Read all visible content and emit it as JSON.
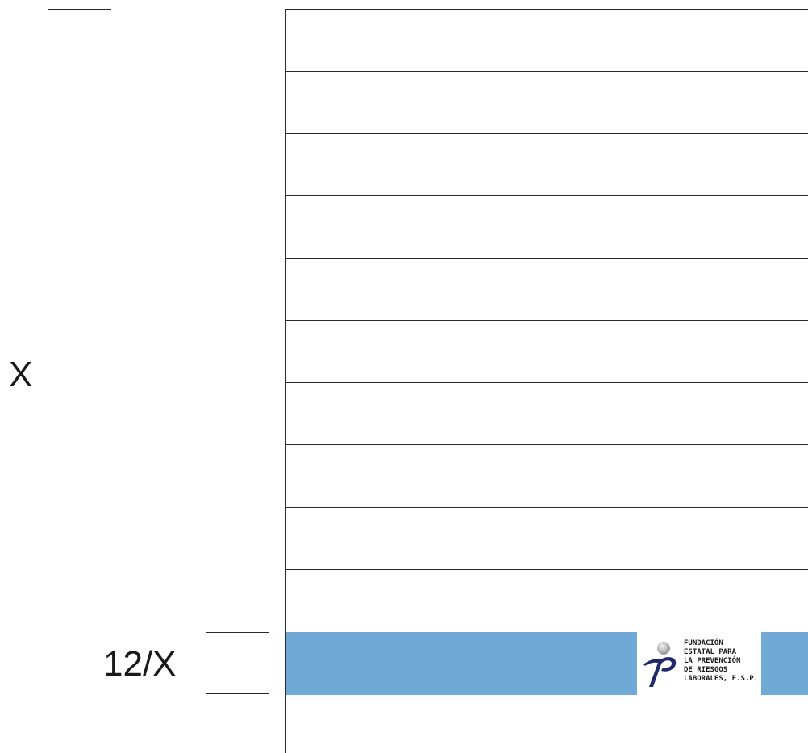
{
  "form": {
    "side_label": "X",
    "score_label": "12/X",
    "rows": 10
  },
  "logo": {
    "lines": [
      "FUNDACIÓN",
      "ESTATAL PARA",
      "LA PREVENCIÓN",
      "DE RIESGOS",
      "LABORALES, F.S.P."
    ]
  },
  "colors": {
    "band": "#71a9d6",
    "logo_mark": "#1f2a6b",
    "logo_sphere": "#c9c9c9"
  }
}
